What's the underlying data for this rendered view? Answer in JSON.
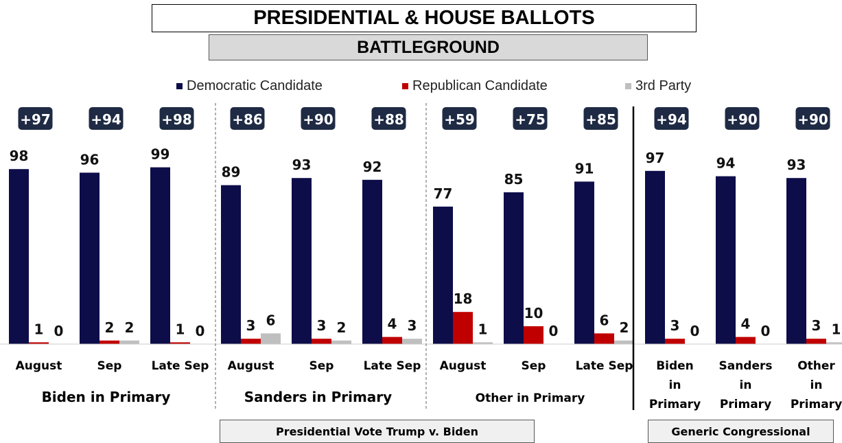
{
  "title": "PRESIDENTIAL & HOUSE BALLOTS",
  "subtitle": "BATTLEGROUND",
  "legend": [
    {
      "label": "Democratic Candidate",
      "color": "#0d0d4a"
    },
    {
      "label": "Republican Candidate",
      "color": "#c00000"
    },
    {
      "label": "3rd Party",
      "color": "#bfbfbf"
    }
  ],
  "footer": {
    "presidential": "Presidential Vote Trump v. Biden",
    "congressional": "Generic Congressional"
  },
  "chart_data": {
    "type": "bar",
    "ylim": [
      0,
      100
    ],
    "series_names": [
      "Democratic Candidate",
      "Republican Candidate",
      "3rd Party"
    ],
    "series_colors": [
      "#0d0d4a",
      "#c00000",
      "#bfbfbf"
    ],
    "groups": [
      {
        "label": "Biden in Primary",
        "categories": [
          {
            "label": [
              "August"
            ],
            "margin": "+97",
            "values": [
              98,
              1,
              0
            ]
          },
          {
            "label": [
              "Sep"
            ],
            "margin": "+94",
            "values": [
              96,
              2,
              2
            ]
          },
          {
            "label": [
              "Late Sep"
            ],
            "margin": "+98",
            "values": [
              99,
              1,
              0
            ]
          }
        ]
      },
      {
        "label": "Sanders in Primary",
        "categories": [
          {
            "label": [
              "August"
            ],
            "margin": "+86",
            "values": [
              89,
              3,
              6
            ]
          },
          {
            "label": [
              "Sep"
            ],
            "margin": "+90",
            "values": [
              93,
              3,
              2
            ]
          },
          {
            "label": [
              "Late Sep"
            ],
            "margin": "+88",
            "values": [
              92,
              4,
              3
            ]
          }
        ]
      },
      {
        "label": "Other in Primary",
        "categories": [
          {
            "label": [
              "August"
            ],
            "margin": "+59",
            "values": [
              77,
              18,
              1
            ]
          },
          {
            "label": [
              "Sep"
            ],
            "margin": "+75",
            "values": [
              85,
              10,
              0
            ]
          },
          {
            "label": [
              "Late Sep"
            ],
            "margin": "+85",
            "values": [
              91,
              6,
              2
            ]
          }
        ]
      },
      {
        "label": "",
        "categories": [
          {
            "label": [
              "Biden",
              "in",
              "Primary"
            ],
            "margin": "+94",
            "values": [
              97,
              3,
              0
            ]
          },
          {
            "label": [
              "Sanders",
              "in",
              "Primary"
            ],
            "margin": "+90",
            "values": [
              94,
              4,
              0
            ]
          },
          {
            "label": [
              "Other",
              "in",
              "Primary"
            ],
            "margin": "+90",
            "values": [
              93,
              3,
              1
            ]
          }
        ]
      }
    ]
  }
}
